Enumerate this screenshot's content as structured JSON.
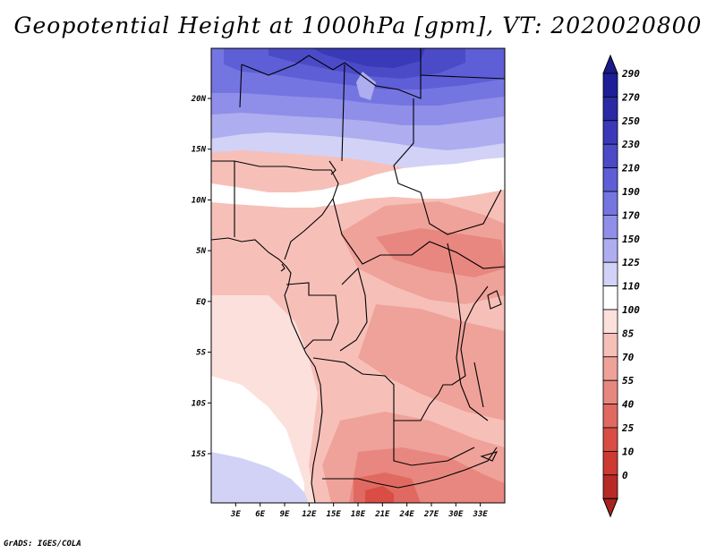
{
  "title": "Geopotential Height at 1000hPa [gpm], VT: 2020020800",
  "credit": "GrADS: IGES/COLA",
  "map": {
    "region": "Central & Southern-central Africa",
    "lat_ticks": [
      {
        "lat": 20,
        "label": "20N"
      },
      {
        "lat": 15,
        "label": "15N"
      },
      {
        "lat": 10,
        "label": "10N"
      },
      {
        "lat": 5,
        "label": "5N"
      },
      {
        "lat": 0,
        "label": "EQ"
      },
      {
        "lat": -5,
        "label": "5S"
      },
      {
        "lat": -10,
        "label": "10S"
      },
      {
        "lat": -15,
        "label": "15S"
      }
    ],
    "lon_ticks": [
      {
        "lon": 3,
        "label": "3E"
      },
      {
        "lon": 6,
        "label": "6E"
      },
      {
        "lon": 9,
        "label": "9E"
      },
      {
        "lon": 12,
        "label": "12E"
      },
      {
        "lon": 15,
        "label": "15E"
      },
      {
        "lon": 18,
        "label": "18E"
      },
      {
        "lon": 21,
        "label": "21E"
      },
      {
        "lon": 24,
        "label": "24E"
      },
      {
        "lon": 27,
        "label": "27E"
      },
      {
        "lon": 30,
        "label": "30E"
      },
      {
        "lon": 33,
        "label": "33E"
      }
    ]
  },
  "colorbar": {
    "levels": [
      {
        "label": "290",
        "color": "#1e1e96"
      },
      {
        "label": "270",
        "color": "#2a2aa5"
      },
      {
        "label": "250",
        "color": "#3a3ab8"
      },
      {
        "label": "230",
        "color": "#4b4bc8"
      },
      {
        "label": "210",
        "color": "#5e5ed6"
      },
      {
        "label": "190",
        "color": "#7575e2"
      },
      {
        "label": "170",
        "color": "#8f8fe9"
      },
      {
        "label": "150",
        "color": "#adadf0"
      },
      {
        "label": "125",
        "color": "#d2d2f7"
      },
      {
        "label": "110",
        "color": "#ffffff"
      },
      {
        "label": "100",
        "color": "#fbe0dc"
      },
      {
        "label": "85",
        "color": "#f6c0b9"
      },
      {
        "label": "70",
        "color": "#efa29a"
      },
      {
        "label": "55",
        "color": "#e8877f"
      },
      {
        "label": "40",
        "color": "#e06a62"
      },
      {
        "label": "25",
        "color": "#d94d45"
      },
      {
        "label": "10",
        "color": "#cc3a33"
      },
      {
        "label": "0",
        "color": "#b82a26"
      }
    ],
    "top_color": "#1a1a8a",
    "bottom_color": "#a82220"
  }
}
